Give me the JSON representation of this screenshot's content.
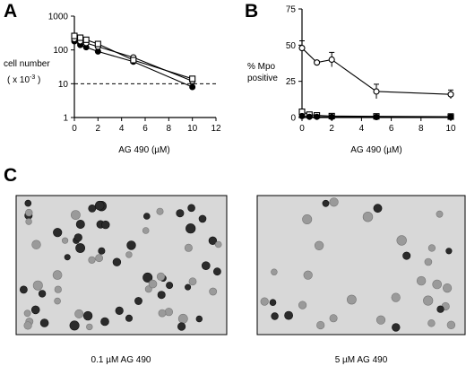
{
  "panels": {
    "a": "A",
    "b": "B",
    "c": "C"
  },
  "chart_data": [
    {
      "panel": "A",
      "type": "line",
      "xlabel": "AG 490 (µM)",
      "ylabel_line1": "cell number",
      "ylabel_line2": "( x 10",
      "ylabel_sup": "-3",
      "ylabel_close": " )",
      "xscale": "linear",
      "yscale": "log",
      "xlim": [
        0,
        12
      ],
      "ylim": [
        1,
        1000
      ],
      "xticks": [
        0,
        2,
        4,
        6,
        8,
        10,
        12
      ],
      "yticks": [
        1,
        10,
        100,
        1000
      ],
      "grid": false,
      "reference_line": {
        "y": 10,
        "style": "dashed"
      },
      "series": [
        {
          "marker": "filled-circle",
          "x": [
            0,
            0.5,
            1,
            2,
            5,
            10
          ],
          "y": [
            180,
            140,
            120,
            90,
            45,
            8
          ]
        },
        {
          "marker": "open-circle",
          "x": [
            0,
            0.5,
            1,
            2,
            5,
            10
          ],
          "y": [
            210,
            180,
            160,
            125,
            60,
            12
          ]
        },
        {
          "marker": "open-square",
          "x": [
            0,
            0.5,
            1,
            2,
            5,
            10
          ],
          "y": [
            260,
            230,
            200,
            150,
            50,
            14
          ]
        }
      ]
    },
    {
      "panel": "B",
      "type": "line",
      "xlabel": "AG 490 (µM)",
      "ylabel_line1": "% Mpo",
      "ylabel_line2": "positive",
      "xscale": "linear",
      "yscale": "linear",
      "xlim": [
        0,
        10
      ],
      "ylim": [
        0,
        75
      ],
      "xticks": [
        0,
        2,
        4,
        6,
        8,
        10
      ],
      "yticks": [
        0,
        25,
        50,
        75
      ],
      "grid": false,
      "series": [
        {
          "marker": "open-circle",
          "x": [
            0,
            1,
            2,
            5,
            10
          ],
          "y": [
            48,
            38,
            40,
            18,
            16
          ],
          "err": [
            5,
            1,
            5,
            5,
            3
          ]
        },
        {
          "marker": "open-square",
          "x": [
            0,
            0.5,
            1,
            2,
            5,
            10
          ],
          "y": [
            4,
            2,
            1.5,
            1,
            0.8,
            0.6
          ],
          "err": [
            1,
            0,
            0,
            0,
            0,
            2
          ]
        },
        {
          "marker": "filled-circle",
          "x": [
            0,
            0.5,
            1,
            2,
            5,
            10
          ],
          "y": [
            1,
            0.5,
            0.5,
            0.4,
            0.3,
            0.3
          ]
        }
      ]
    }
  ],
  "micrographs": [
    {
      "caption": "0.1 µM AG 490"
    },
    {
      "caption": "5 µM AG 490"
    }
  ],
  "colors": {
    "ink": "#000000",
    "photo_bg": "#d8d8d8",
    "cell_light": "#9a9a9a",
    "cell_dark": "#2b2b2b"
  }
}
